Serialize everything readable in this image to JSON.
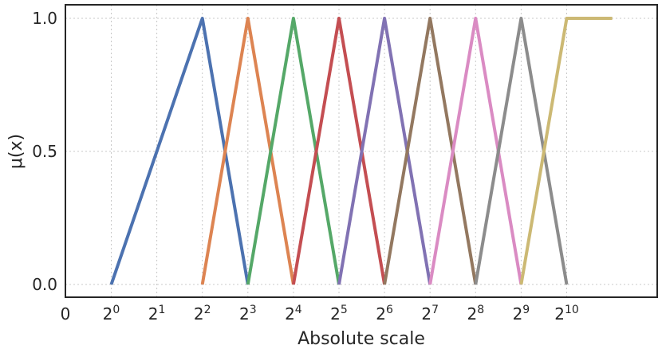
{
  "chart_data": {
    "type": "line",
    "title": "",
    "xlabel": "Absolute scale",
    "ylabel": "μ(x)",
    "x_scale": "log2",
    "xlim": [
      "0",
      2048
    ],
    "ylim": [
      -0.05,
      1.05
    ],
    "grid": true,
    "legend": "none",
    "x_ticks": [
      {
        "base": "0",
        "exp": ""
      },
      {
        "base": "2",
        "exp": "0",
        "value": 1
      },
      {
        "base": "2",
        "exp": "1",
        "value": 2
      },
      {
        "base": "2",
        "exp": "2",
        "value": 4
      },
      {
        "base": "2",
        "exp": "3",
        "value": 8
      },
      {
        "base": "2",
        "exp": "4",
        "value": 16
      },
      {
        "base": "2",
        "exp": "5",
        "value": 32
      },
      {
        "base": "2",
        "exp": "6",
        "value": 64
      },
      {
        "base": "2",
        "exp": "7",
        "value": 128
      },
      {
        "base": "2",
        "exp": "8",
        "value": 256
      },
      {
        "base": "2",
        "exp": "9",
        "value": 512
      },
      {
        "base": "2",
        "exp": "10",
        "value": 1024
      }
    ],
    "y_ticks": [
      {
        "label": "0.0",
        "value": 0.0
      },
      {
        "label": "0.5",
        "value": 0.5
      },
      {
        "label": "1.0",
        "value": 1.0
      }
    ],
    "series": [
      {
        "color": "#4c72b0",
        "points": [
          [
            1,
            0
          ],
          [
            4,
            1
          ],
          [
            8,
            0
          ]
        ]
      },
      {
        "color": "#dd8452",
        "points": [
          [
            4,
            0
          ],
          [
            8,
            1
          ],
          [
            16,
            0
          ]
        ]
      },
      {
        "color": "#55a868",
        "points": [
          [
            8,
            0
          ],
          [
            16,
            1
          ],
          [
            32,
            0
          ]
        ]
      },
      {
        "color": "#c44e52",
        "points": [
          [
            16,
            0
          ],
          [
            32,
            1
          ],
          [
            64,
            0
          ]
        ]
      },
      {
        "color": "#8172b3",
        "points": [
          [
            32,
            0
          ],
          [
            64,
            1
          ],
          [
            128,
            0
          ]
        ]
      },
      {
        "color": "#937860",
        "points": [
          [
            64,
            0
          ],
          [
            128,
            1
          ],
          [
            256,
            0
          ]
        ]
      },
      {
        "color": "#da8bc3",
        "points": [
          [
            128,
            0
          ],
          [
            256,
            1
          ],
          [
            512,
            0
          ]
        ]
      },
      {
        "color": "#8c8c8c",
        "points": [
          [
            256,
            0
          ],
          [
            512,
            1
          ],
          [
            1024,
            0
          ]
        ]
      },
      {
        "color": "#ccb974",
        "points": [
          [
            512,
            0
          ],
          [
            1024,
            1
          ],
          [
            2048,
            1
          ]
        ]
      }
    ]
  }
}
